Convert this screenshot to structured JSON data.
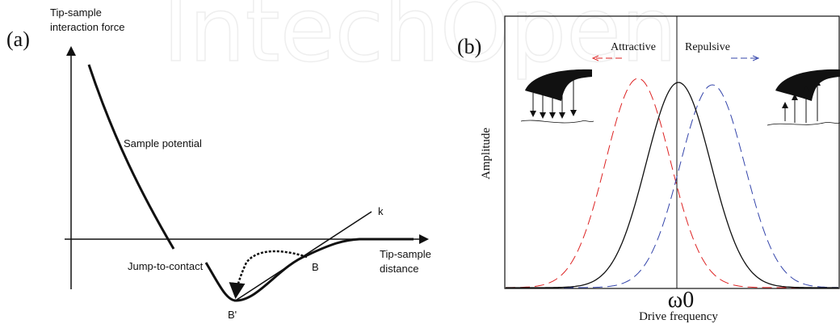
{
  "watermark": "IntechOpen",
  "panel_a": {
    "tag": "(a)",
    "y_label": [
      "Tip-sample",
      "interaction force"
    ],
    "curve_label": "Sample potential",
    "line_label": "k",
    "jump_label": "Jump-to-contact",
    "point_b": "B",
    "point_b_prime": "B'",
    "x_label": [
      "Tip-sample",
      "distance"
    ]
  },
  "panel_b": {
    "tag": "(b)",
    "attractive": "Attractive",
    "repulsive": "Repulsive",
    "y_label": "Amplitude",
    "center_label": "ω0",
    "x_label": "Drive frequency"
  }
}
